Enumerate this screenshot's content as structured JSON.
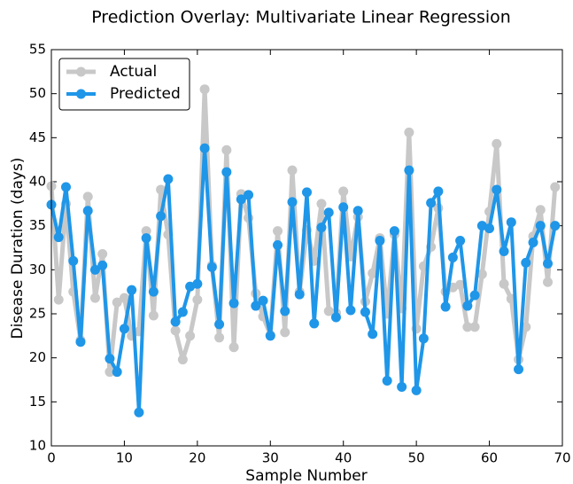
{
  "chart_data": {
    "type": "line",
    "title": "Prediction Overlay: Multivariate Linear Regression",
    "x_label": "Sample Number",
    "y_label": "Disease Duration (days)",
    "x": [
      0,
      1,
      2,
      3,
      4,
      5,
      6,
      7,
      8,
      9,
      10,
      11,
      12,
      13,
      14,
      15,
      16,
      17,
      18,
      19,
      20,
      21,
      22,
      23,
      24,
      25,
      26,
      27,
      28,
      29,
      30,
      31,
      32,
      33,
      34,
      35,
      36,
      37,
      38,
      39,
      40,
      41,
      42,
      43,
      44,
      45,
      46,
      47,
      48,
      49,
      50,
      51,
      52,
      53,
      54,
      55,
      56,
      57,
      58,
      59,
      60,
      61,
      62,
      63,
      64,
      65,
      66,
      67,
      68,
      69
    ],
    "series": [
      {
        "name": "Actual",
        "color": "#c8c8c8",
        "values": [
          39.5,
          26.6,
          37.5,
          27.5,
          22.0,
          38.3,
          26.8,
          31.8,
          18.4,
          26.3,
          26.8,
          22.5,
          23.0,
          34.4,
          24.8,
          39.1,
          34.0,
          23.1,
          19.8,
          22.5,
          26.6,
          50.5,
          30.5,
          22.3,
          43.6,
          21.2,
          38.6,
          35.9,
          27.3,
          24.7,
          22.6,
          34.4,
          22.9,
          41.3,
          27.5,
          34.5,
          31.0,
          37.5,
          25.3,
          25.1,
          38.9,
          31.5,
          36.0,
          26.4,
          29.6,
          33.6,
          25.0,
          34.0,
          25.6,
          45.6,
          23.3,
          30.4,
          32.6,
          37.0,
          27.5,
          28.0,
          28.3,
          23.5,
          23.5,
          29.5,
          36.6,
          44.3,
          28.4,
          26.7,
          19.8,
          23.5,
          33.8,
          36.8,
          28.6,
          39.4
        ]
      },
      {
        "name": "Predicted",
        "color": "#1f96e8",
        "values": [
          37.4,
          33.7,
          39.4,
          31.0,
          21.8,
          36.7,
          30.0,
          30.5,
          19.9,
          18.4,
          23.3,
          27.7,
          13.8,
          33.6,
          27.5,
          36.1,
          40.3,
          24.1,
          25.2,
          28.1,
          28.4,
          43.8,
          30.3,
          23.8,
          41.1,
          26.2,
          38.0,
          38.5,
          25.9,
          26.5,
          22.5,
          32.8,
          25.3,
          37.7,
          27.2,
          38.8,
          23.9,
          34.8,
          36.5,
          24.6,
          37.1,
          25.4,
          36.7,
          25.2,
          22.7,
          33.3,
          17.4,
          34.4,
          16.7,
          41.3,
          16.3,
          22.2,
          37.6,
          38.9,
          25.8,
          31.4,
          33.3,
          25.9,
          27.1,
          35.0,
          34.7,
          39.1,
          32.1,
          35.4,
          18.7,
          30.8,
          33.1,
          35.0,
          30.7,
          35.0
        ]
      }
    ],
    "xlim": [
      0,
      70
    ],
    "xticks": [
      0,
      10,
      20,
      30,
      40,
      50,
      60,
      70
    ],
    "ylim": [
      10,
      55
    ],
    "yticks": [
      10,
      15,
      20,
      25,
      30,
      35,
      40,
      45,
      50,
      55
    ],
    "legend": "upper left"
  }
}
